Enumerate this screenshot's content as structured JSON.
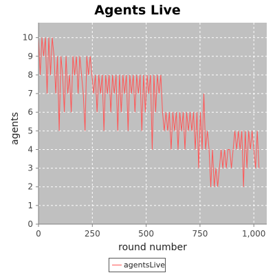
{
  "colors": {
    "plot_background": "#c0c0c0",
    "grid": "#ffffff",
    "series": "#ff5555",
    "axis": "#808080"
  },
  "chart_data": {
    "type": "line",
    "title": "Agents Live",
    "xlabel": "round number",
    "ylabel": "agents",
    "xlim": [
      0,
      1060
    ],
    "ylim": [
      0,
      10.8
    ],
    "xticks": [
      0,
      250,
      500,
      750,
      1000
    ],
    "xtick_labels": [
      "0",
      "250",
      "500",
      "750",
      "1,000"
    ],
    "yticks": [
      0,
      1,
      2,
      3,
      4,
      5,
      6,
      7,
      8,
      9,
      10
    ],
    "ytick_labels": [
      "0",
      "1",
      "2",
      "3",
      "4",
      "5",
      "6",
      "7",
      "8",
      "9",
      "10"
    ],
    "grid": true,
    "legend": "bottom-center",
    "series": [
      {
        "name": "agentsLive",
        "x": [
          0,
          8,
          16,
          24,
          32,
          40,
          48,
          56,
          64,
          72,
          80,
          88,
          96,
          104,
          112,
          120,
          128,
          136,
          144,
          152,
          160,
          168,
          176,
          184,
          192,
          200,
          208,
          216,
          224,
          232,
          240,
          248,
          256,
          264,
          272,
          280,
          288,
          296,
          304,
          312,
          320,
          328,
          336,
          344,
          352,
          360,
          368,
          376,
          384,
          392,
          400,
          408,
          416,
          424,
          432,
          440,
          448,
          456,
          464,
          472,
          480,
          488,
          496,
          504,
          512,
          520,
          528,
          536,
          544,
          552,
          560,
          568,
          576,
          584,
          592,
          600,
          608,
          616,
          624,
          632,
          640,
          648,
          656,
          664,
          672,
          680,
          688,
          696,
          704,
          712,
          720,
          728,
          736,
          744,
          752,
          760,
          768,
          776,
          784,
          792,
          800,
          808,
          816,
          824,
          832,
          840,
          848,
          856,
          864,
          872,
          880,
          888,
          896,
          904,
          912,
          920,
          928,
          936,
          944,
          952,
          960,
          968,
          976,
          984,
          992,
          1000,
          1008,
          1016,
          1024
        ],
        "values": [
          10,
          8,
          10,
          9,
          10,
          7,
          10,
          8,
          10,
          9,
          7,
          9,
          5,
          9,
          8,
          6,
          9,
          7,
          8,
          6,
          9,
          8,
          9,
          7,
          9,
          8,
          7,
          5,
          9,
          8,
          9,
          8,
          7,
          8,
          6,
          8,
          7,
          8,
          5,
          8,
          7,
          8,
          6,
          8,
          7,
          8,
          5,
          8,
          6,
          8,
          7,
          8,
          5,
          8,
          7,
          8,
          6,
          8,
          7,
          8,
          5,
          8,
          6,
          8,
          7,
          8,
          4,
          8,
          6,
          8,
          7,
          8,
          6,
          5,
          6,
          5,
          6,
          4,
          6,
          5,
          6,
          4,
          6,
          5,
          6,
          4,
          6,
          5,
          6,
          5,
          6,
          4,
          6,
          3,
          6,
          4,
          7,
          4,
          5,
          4,
          2,
          4,
          2,
          3,
          2,
          3,
          4,
          3,
          4,
          3,
          4,
          4,
          3,
          4,
          5,
          4,
          5,
          4,
          5,
          2,
          5,
          3,
          5,
          4,
          5,
          4,
          3,
          5,
          3
        ]
      }
    ]
  }
}
